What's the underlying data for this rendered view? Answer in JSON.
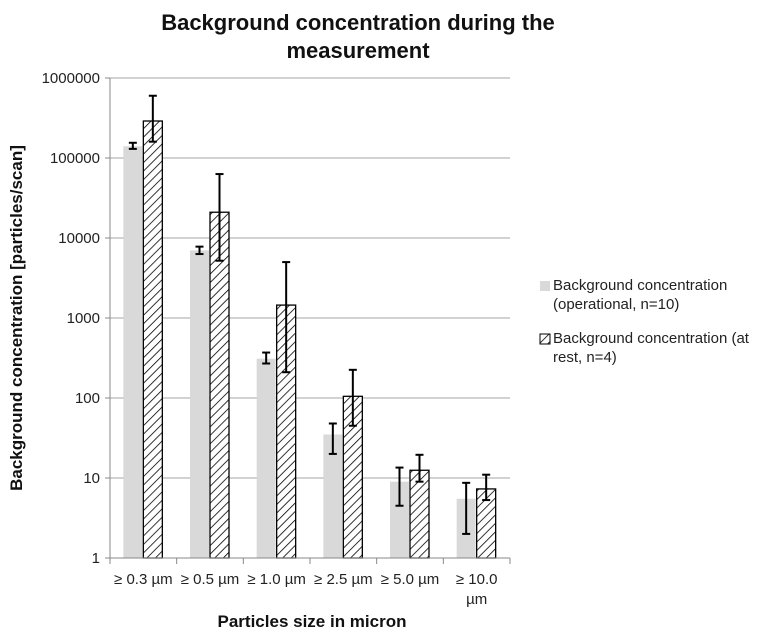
{
  "chart_data": {
    "type": "bar",
    "title_lines": [
      "Background concentration during the",
      "measurement"
    ],
    "xlabel": "Particles size in micron",
    "ylabel": "Background concentration  [particles/scan]",
    "yscale": "log",
    "ylim": [
      1,
      1000000
    ],
    "yticks": [
      "1",
      "10",
      "100",
      "1000",
      "10000",
      "100000",
      "1000000"
    ],
    "grid": true,
    "legend_position": "right",
    "categories": [
      [
        "≥ 0.3 µm"
      ],
      [
        "≥ 0.5 µm"
      ],
      [
        "≥ 1.0 µm"
      ],
      [
        "≥ 2.5 µm"
      ],
      [
        "≥ 5.0 µm"
      ],
      [
        "≥ 10.0",
        "µm"
      ]
    ],
    "series": [
      {
        "name_lines": [
          "Background concentration",
          "(operational, n=10)"
        ],
        "style": "solid",
        "color": "#d9d9d9",
        "values": [
          140000,
          7000,
          310,
          35,
          9,
          5.5
        ],
        "err_low": [
          130000,
          6300,
          270,
          20,
          4.5,
          2
        ],
        "err_high": [
          155000,
          7800,
          370,
          48,
          13.5,
          8.7
        ]
      },
      {
        "name_lines": [
          "Background concentration (at",
          "rest, n=4)"
        ],
        "style": "hatched",
        "color": "#000000",
        "values": [
          290000,
          21000,
          1450,
          105,
          12.5,
          7.3
        ],
        "err_low": [
          160000,
          5200,
          210,
          45,
          9,
          5.3
        ],
        "err_high": [
          600000,
          63000,
          5000,
          225,
          19.5,
          11
        ]
      }
    ]
  }
}
